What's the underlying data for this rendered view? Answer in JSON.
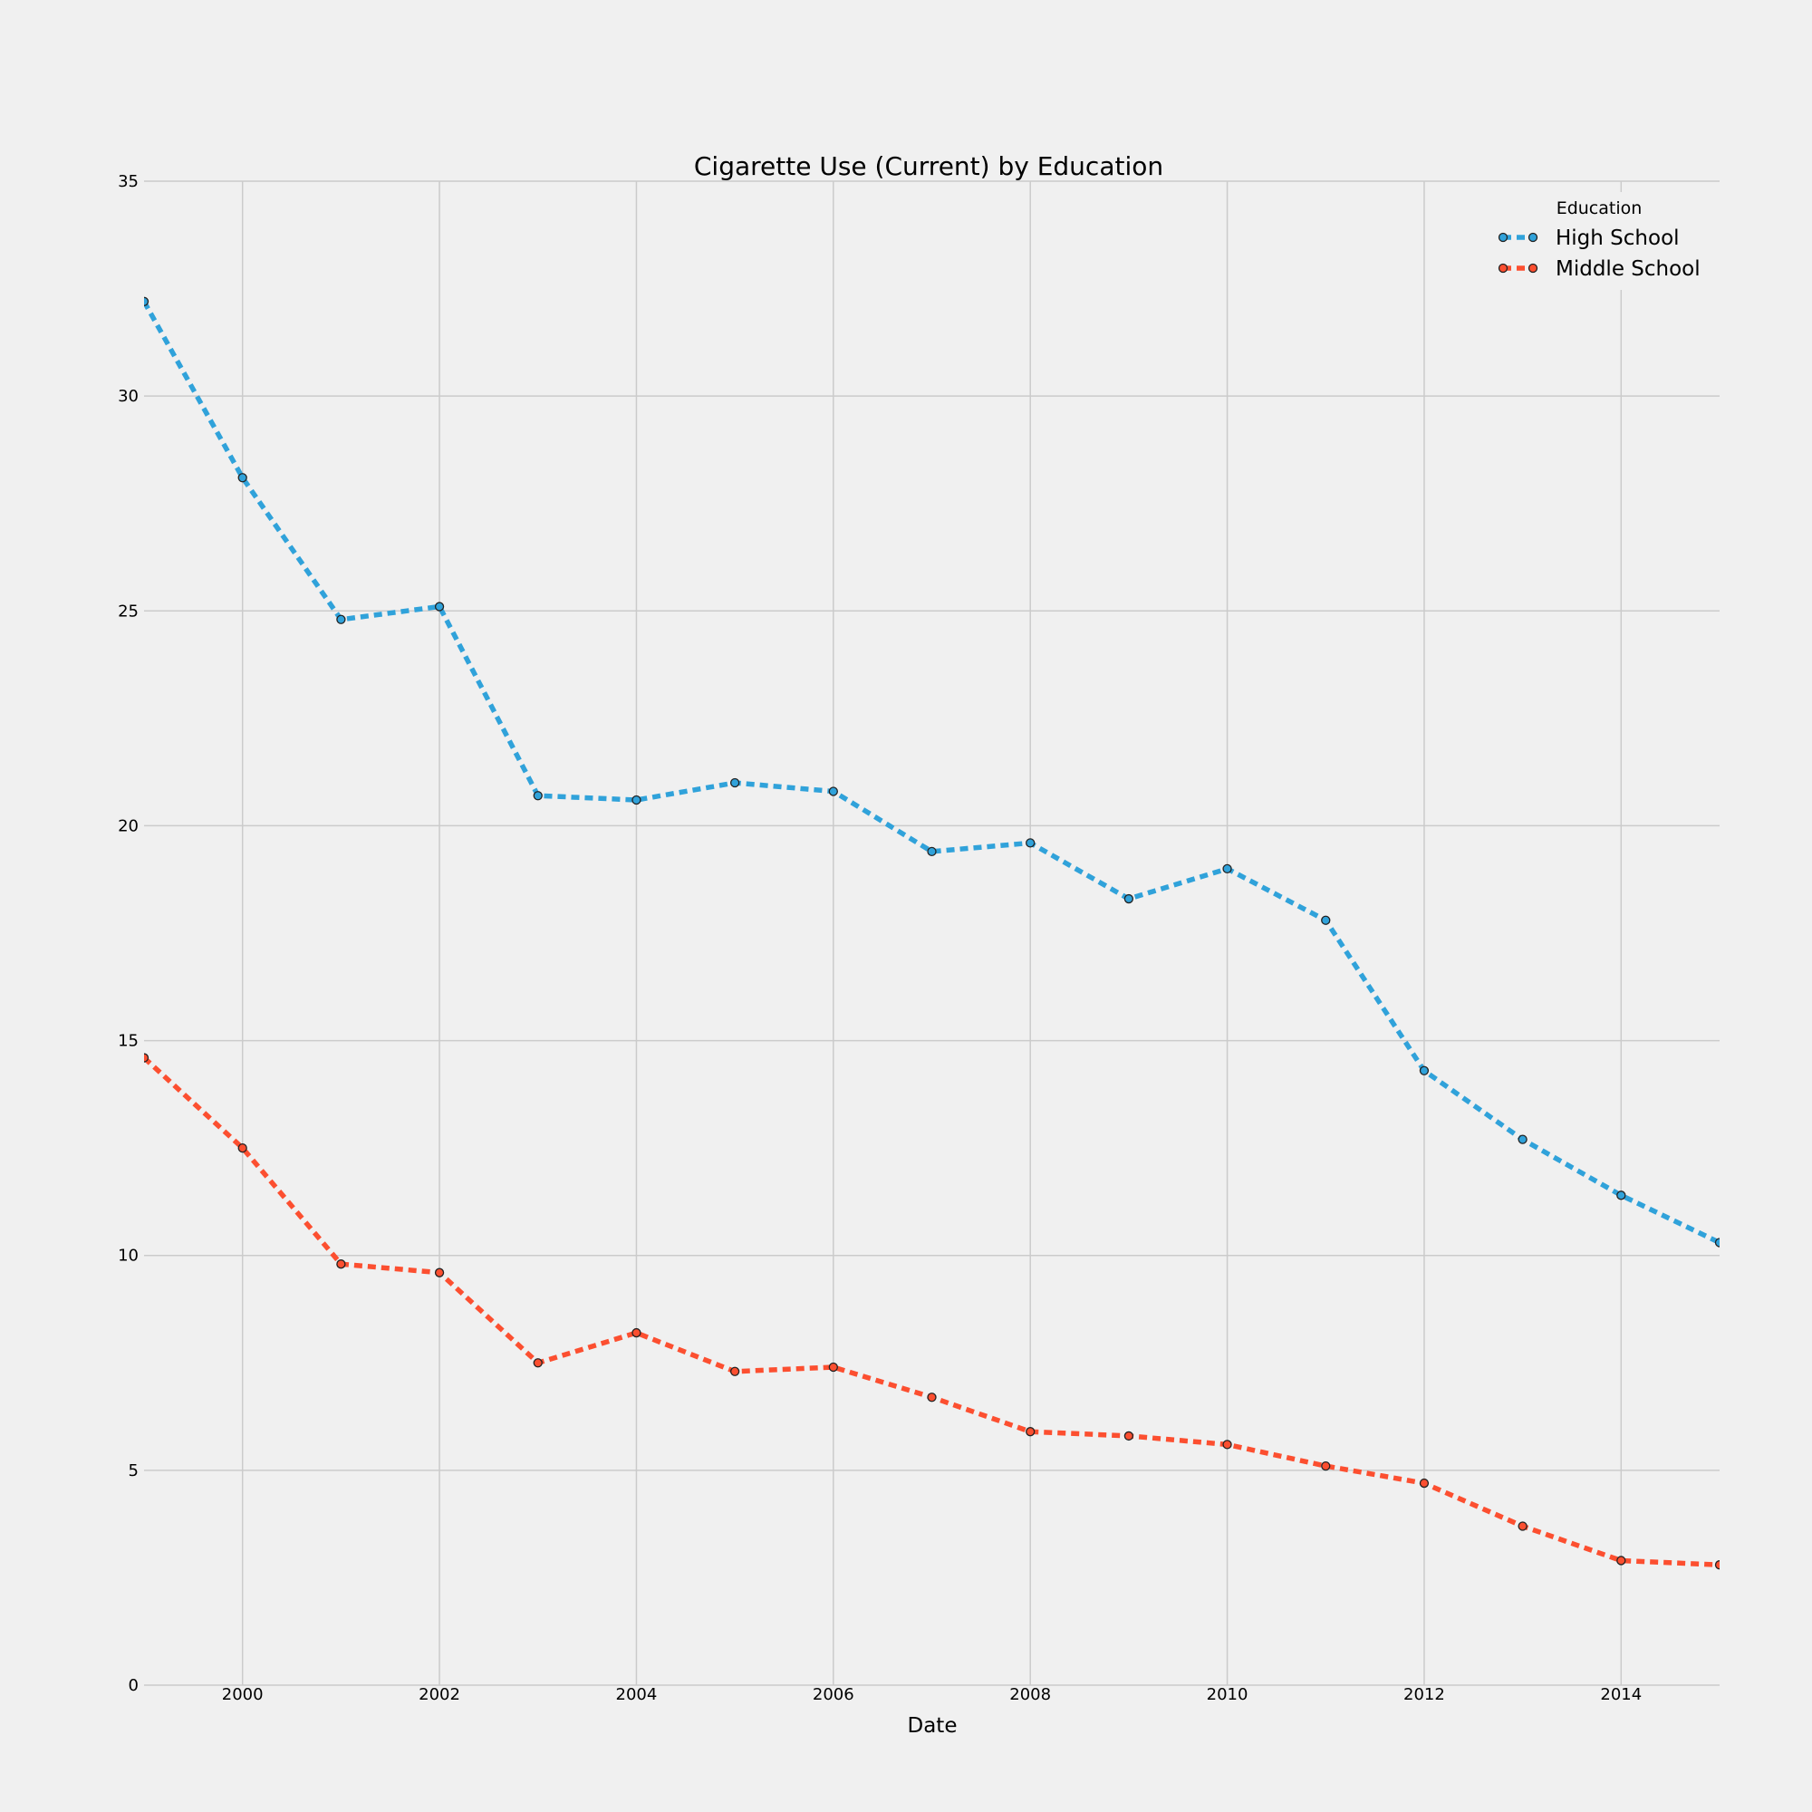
{
  "chart_data": {
    "type": "line",
    "title": "Cigarette Use (Current) by Education",
    "xlabel": "Date",
    "ylabel": "",
    "xlim": [
      1999,
      2015
    ],
    "ylim": [
      0,
      35
    ],
    "x_ticks": [
      2000,
      2002,
      2004,
      2006,
      2008,
      2010,
      2012,
      2014
    ],
    "y_ticks": [
      0,
      5,
      10,
      15,
      20,
      25,
      30,
      35
    ],
    "grid": true,
    "legend": {
      "title": "Education",
      "position": "top-right"
    },
    "x": [
      1999,
      2000,
      2001,
      2002,
      2003,
      2004,
      2005,
      2006,
      2007,
      2008,
      2009,
      2010,
      2011,
      2012,
      2013,
      2014,
      2015
    ],
    "series": [
      {
        "name": "High School",
        "color": "#30a2da",
        "line_style": "dashed",
        "values": [
          32.2,
          28.1,
          24.8,
          25.1,
          20.7,
          20.6,
          21.0,
          20.8,
          19.4,
          19.6,
          18.3,
          19.0,
          17.8,
          14.3,
          12.7,
          11.4,
          10.3
        ]
      },
      {
        "name": "Middle School",
        "color": "#fc4f30",
        "line_style": "dashed",
        "values": [
          14.6,
          12.5,
          9.8,
          9.6,
          7.5,
          8.2,
          7.3,
          7.4,
          6.7,
          5.9,
          5.8,
          5.6,
          5.1,
          4.7,
          3.7,
          2.9,
          2.8
        ]
      }
    ]
  }
}
